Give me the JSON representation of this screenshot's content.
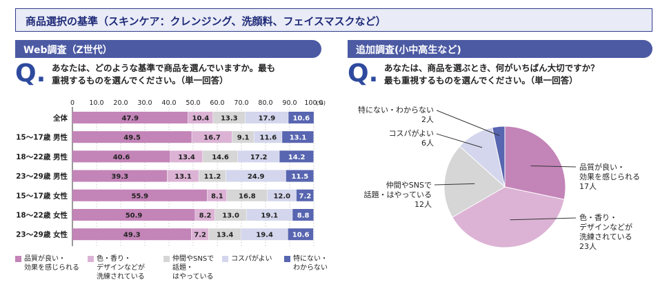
{
  "header": {
    "title": "商品選択の基準（スキンケア：クレンジング、洗顔料、フェイスマスクなど）"
  },
  "left": {
    "section_title": "Web調査（Z世代）",
    "q_mark": "Q.",
    "question": "あなたは、どのような基準で商品を選んでいますか。最も\n重視するものを選んでください。（単一回答）",
    "unit": "(%)"
  },
  "right": {
    "section_title": "追加調査(小中高生など)",
    "q_mark": "Q.",
    "question": "あなたは、商品を選ぶとき、何がいちばん大切ですか？\n最も重視するものを選んでください。（単一回答）"
  },
  "colors": [
    "#c384b8",
    "#dcb3d5",
    "#d6d6d6",
    "#d3d6ec",
    "#5865b0"
  ],
  "chart_data": [
    {
      "type": "bar",
      "stacked": true,
      "orientation": "horizontal",
      "xlim": [
        0,
        100
      ],
      "ticks": [
        "0",
        "10.0",
        "20.0",
        "30.0",
        "40.0",
        "50.0",
        "60.0",
        "70.0",
        "80.0",
        "90.0",
        "100.0"
      ],
      "categories": [
        "全体",
        "15～17歳 男性",
        "18～22歳 男性",
        "23～29歳 男性",
        "15～17歳 女性",
        "18～22歳 女性",
        "23～29歳 女性"
      ],
      "series": [
        {
          "name": "品質が良い・\n効果を感じられる",
          "values": [
            47.9,
            49.5,
            40.6,
            39.3,
            55.9,
            50.9,
            49.3
          ]
        },
        {
          "name": "色・香り・\nデザインなどが\n洗練されている",
          "values": [
            10.4,
            16.7,
            13.4,
            13.1,
            8.1,
            8.2,
            7.2
          ]
        },
        {
          "name": "仲間やSNSで\n話題・\nはやっている",
          "values": [
            13.3,
            9.1,
            14.6,
            11.2,
            16.8,
            13.0,
            13.4
          ]
        },
        {
          "name": "コスパがよい",
          "values": [
            17.9,
            11.6,
            17.2,
            24.9,
            12.0,
            19.1,
            19.4
          ]
        },
        {
          "name": "特にない・\nわからない",
          "values": [
            10.6,
            13.1,
            14.2,
            11.5,
            7.2,
            8.8,
            10.6
          ]
        }
      ],
      "legend": "bottom"
    },
    {
      "type": "pie",
      "unit": "人",
      "slices": [
        {
          "label": "品質が良い・\n効果を感じられる\n17人",
          "value": 17
        },
        {
          "label": "色・香り・\nデザインなどが\n洗練されている\n23人",
          "value": 23
        },
        {
          "label": "仲間やSNSで\n話題・はやっている\n12人",
          "value": 12
        },
        {
          "label": "コスパがよい\n6人",
          "value": 6
        },
        {
          "label": "特にない・わからない\n2人",
          "value": 2
        }
      ]
    }
  ]
}
